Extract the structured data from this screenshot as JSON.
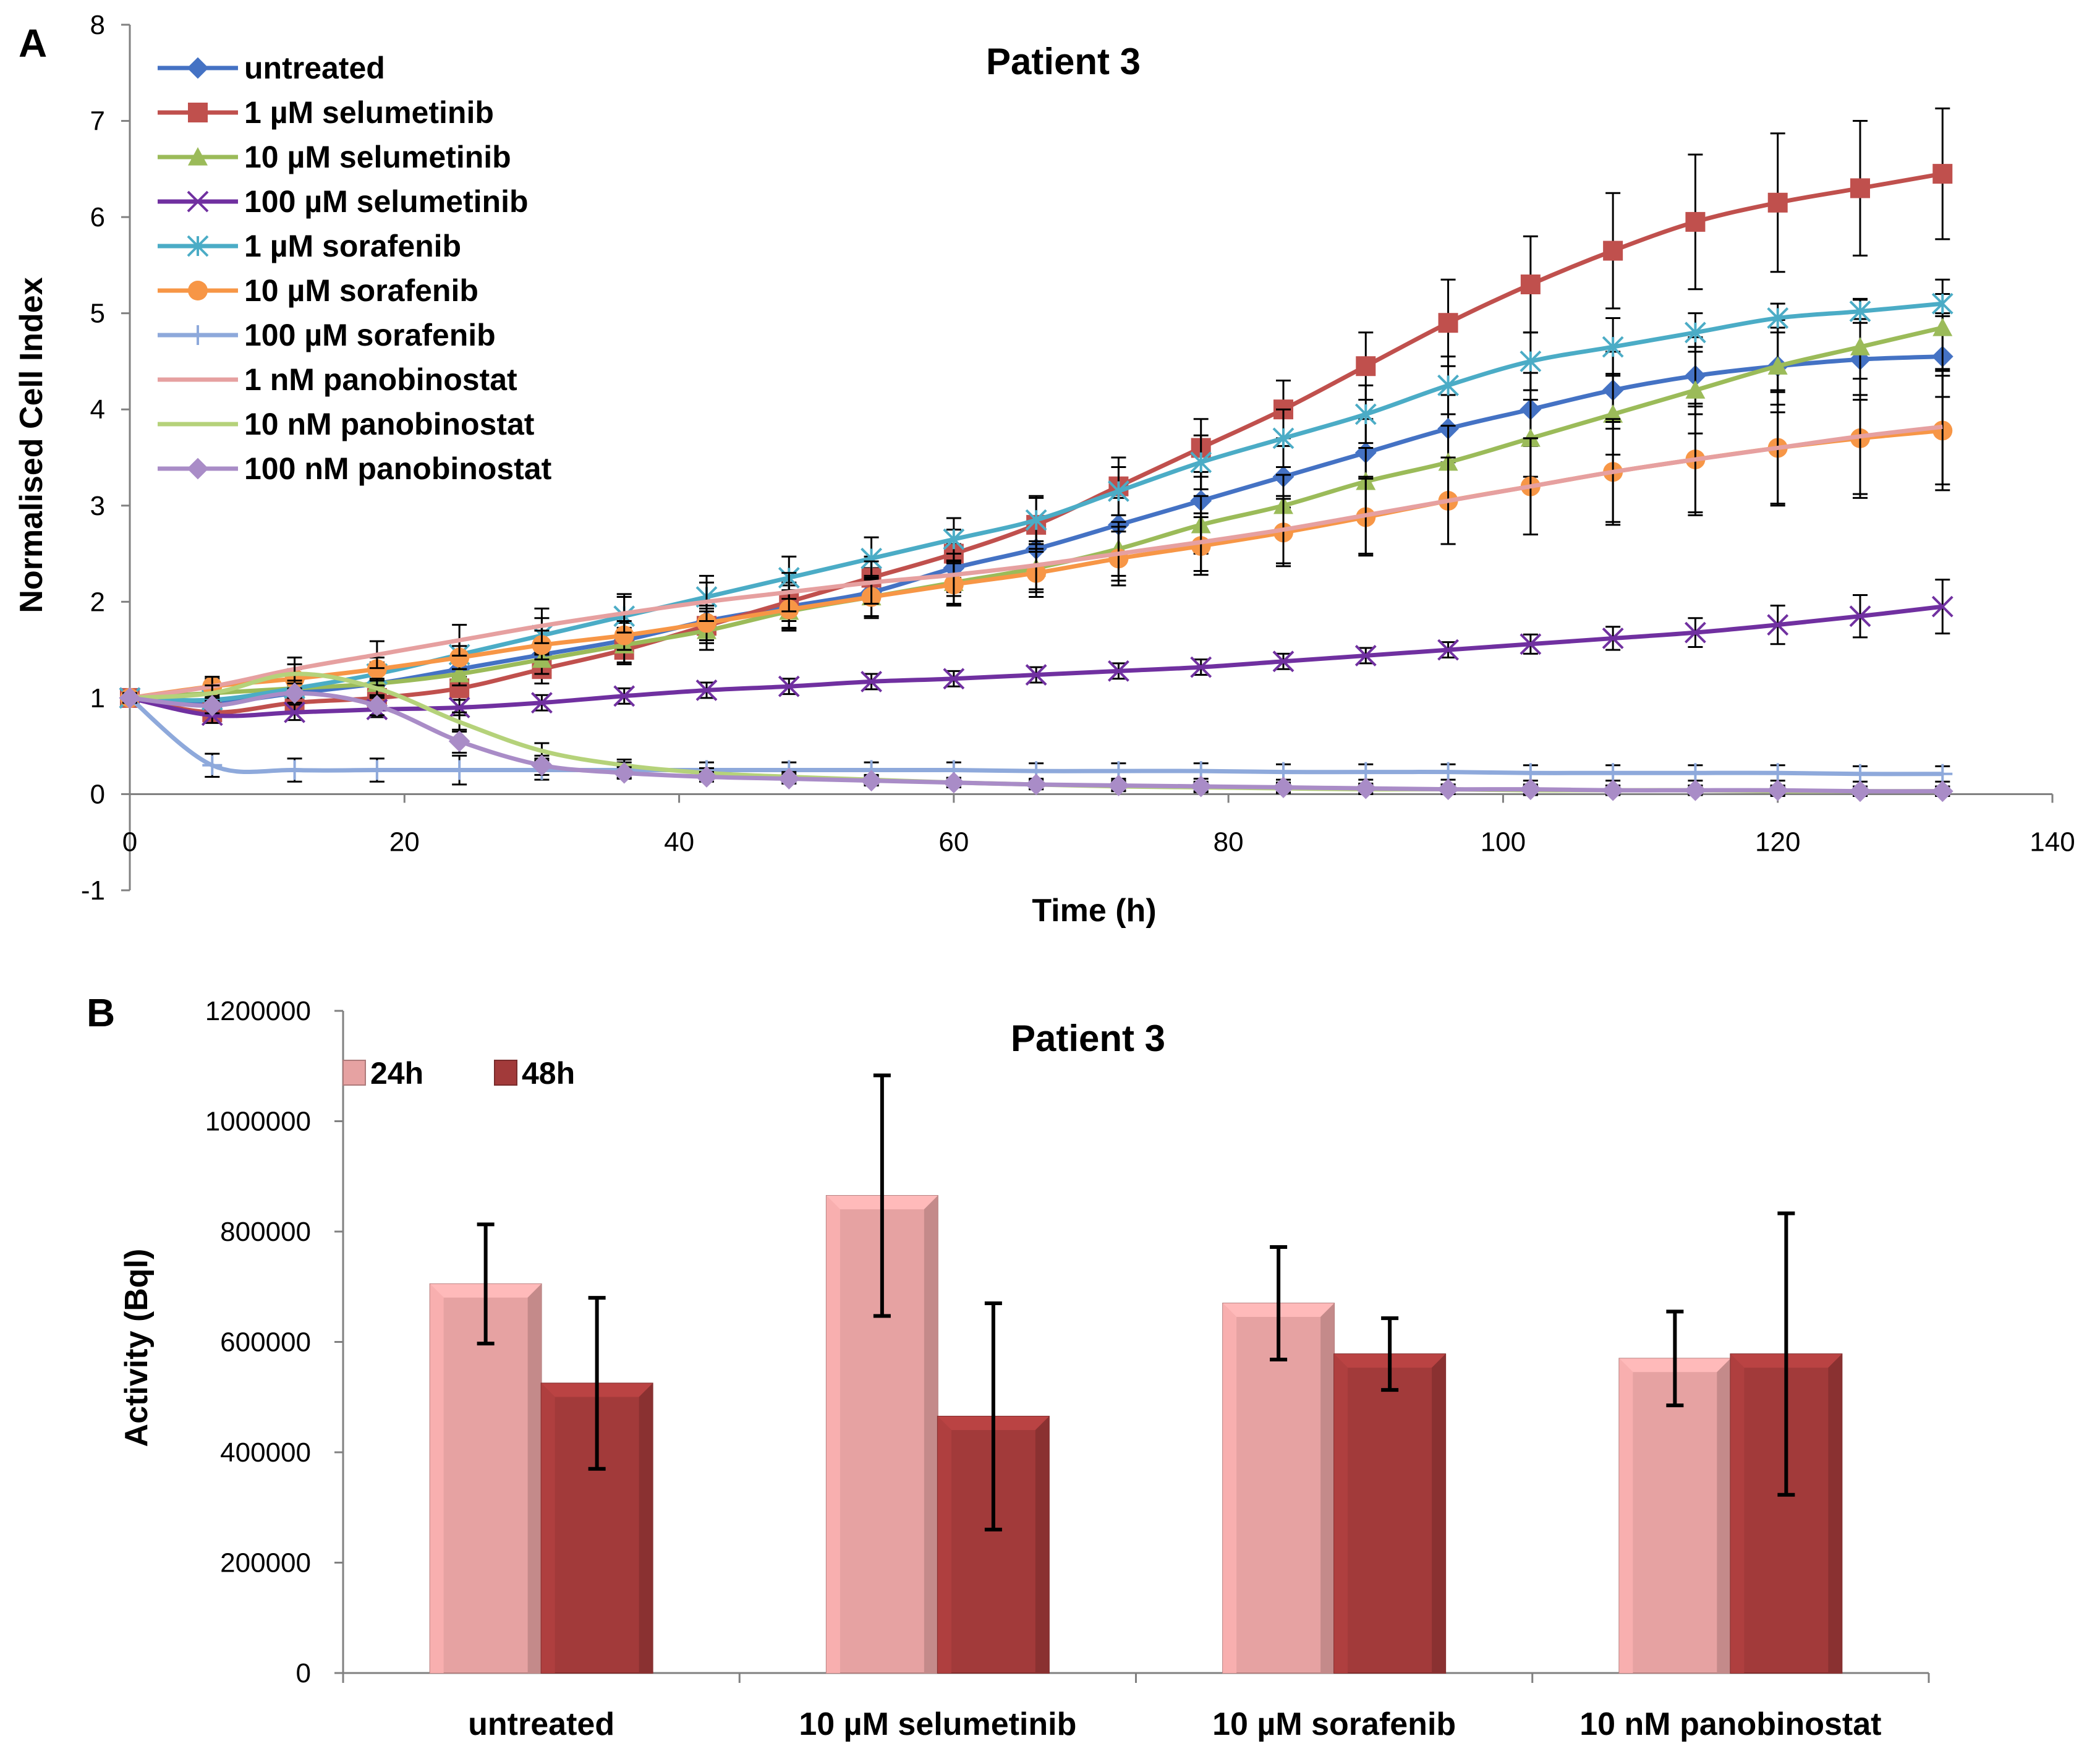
{
  "chart_data": [
    {
      "panel": "A",
      "type": "line",
      "title": "Patient 3",
      "xlabel": "Time (h)",
      "ylabel": "Normalised Cell Index",
      "xlim": [
        0,
        140
      ],
      "ylim": [
        -1,
        8
      ],
      "xticks": [
        0,
        20,
        40,
        60,
        80,
        100,
        120,
        140
      ],
      "yticks": [
        -1,
        0,
        1,
        2,
        3,
        4,
        5,
        6,
        7,
        8
      ],
      "x": [
        0,
        6,
        12,
        18,
        24,
        30,
        36,
        42,
        48,
        54,
        60,
        66,
        72,
        78,
        84,
        90,
        96,
        102,
        108,
        114,
        120,
        126,
        132
      ],
      "legend_position": "top-left",
      "series": [
        {
          "name": "untreated",
          "color": "#4472C4",
          "marker": "diamond",
          "values": [
            1.0,
            0.95,
            1.05,
            1.15,
            1.3,
            1.45,
            1.6,
            1.8,
            1.95,
            2.1,
            2.35,
            2.55,
            2.8,
            3.05,
            3.3,
            3.55,
            3.8,
            4.0,
            4.2,
            4.35,
            4.45,
            4.52,
            4.55
          ],
          "errors": [
            0.05,
            0.05,
            0.08,
            0.1,
            0.12,
            0.15,
            0.18,
            0.2,
            0.22,
            0.25,
            0.25,
            0.25,
            0.28,
            0.3,
            0.32,
            0.35,
            0.35,
            0.38,
            0.4,
            0.4,
            0.4,
            0.42,
            0.42
          ]
        },
        {
          "name": "1 µM selumetinib",
          "color": "#C0504D",
          "marker": "square",
          "values": [
            1.0,
            0.85,
            0.95,
            1.0,
            1.1,
            1.3,
            1.5,
            1.75,
            2.0,
            2.25,
            2.5,
            2.8,
            3.2,
            3.6,
            4.0,
            4.45,
            4.9,
            5.3,
            5.65,
            5.95,
            6.15,
            6.3,
            6.45
          ],
          "errors": [
            0.05,
            0.1,
            0.1,
            0.12,
            0.12,
            0.15,
            0.15,
            0.18,
            0.2,
            0.22,
            0.25,
            0.28,
            0.3,
            0.3,
            0.3,
            0.35,
            0.45,
            0.5,
            0.6,
            0.7,
            0.72,
            0.7,
            0.68
          ]
        },
        {
          "name": "10 µM selumetinib",
          "color": "#9BBB59",
          "marker": "triangle",
          "values": [
            1.0,
            1.05,
            1.1,
            1.15,
            1.25,
            1.4,
            1.55,
            1.7,
            1.9,
            2.05,
            2.2,
            2.35,
            2.55,
            2.8,
            3.0,
            3.25,
            3.45,
            3.7,
            3.95,
            4.2,
            4.45,
            4.65,
            4.85
          ],
          "errors": [
            0.05,
            0.08,
            0.1,
            0.12,
            0.12,
            0.15,
            0.18,
            0.2,
            0.2,
            0.22,
            0.22,
            0.25,
            0.28,
            0.3,
            0.32,
            0.35,
            0.38,
            0.4,
            0.42,
            0.45,
            0.48,
            0.5,
            0.5
          ]
        },
        {
          "name": "100 µM selumetinib",
          "color": "#7030A0",
          "marker": "x",
          "values": [
            1.0,
            0.82,
            0.85,
            0.88,
            0.9,
            0.95,
            1.02,
            1.08,
            1.12,
            1.17,
            1.2,
            1.24,
            1.28,
            1.32,
            1.38,
            1.44,
            1.5,
            1.56,
            1.62,
            1.68,
            1.76,
            1.85,
            1.95
          ],
          "errors": [
            0.05,
            0.08,
            0.08,
            0.08,
            0.08,
            0.08,
            0.08,
            0.08,
            0.08,
            0.08,
            0.08,
            0.08,
            0.08,
            0.08,
            0.08,
            0.08,
            0.08,
            0.1,
            0.12,
            0.15,
            0.2,
            0.22,
            0.28
          ]
        },
        {
          "name": "1 µM sorafenib",
          "color": "#4BACC6",
          "marker": "asterisk",
          "values": [
            1.0,
            0.98,
            1.1,
            1.25,
            1.45,
            1.65,
            1.85,
            2.05,
            2.25,
            2.45,
            2.65,
            2.85,
            3.15,
            3.45,
            3.7,
            3.95,
            4.25,
            4.5,
            4.65,
            4.8,
            4.95,
            5.02,
            5.1
          ],
          "errors": [
            0.05,
            0.08,
            0.1,
            0.12,
            0.15,
            0.18,
            0.2,
            0.22,
            0.22,
            0.22,
            0.22,
            0.25,
            0.25,
            0.28,
            0.3,
            0.3,
            0.3,
            0.3,
            0.3,
            0.2,
            0.15,
            0.12,
            0.1
          ]
        },
        {
          "name": "10 µM sorafenib",
          "color": "#F79646",
          "marker": "circle",
          "values": [
            1.0,
            1.12,
            1.2,
            1.3,
            1.42,
            1.55,
            1.65,
            1.78,
            1.92,
            2.05,
            2.18,
            2.3,
            2.45,
            2.58,
            2.72,
            2.88,
            3.05,
            3.2,
            3.35,
            3.48,
            3.6,
            3.7,
            3.78
          ],
          "errors": [
            0.05,
            0.08,
            0.1,
            0.12,
            0.12,
            0.15,
            0.15,
            0.18,
            0.2,
            0.2,
            0.22,
            0.25,
            0.28,
            0.3,
            0.35,
            0.4,
            0.45,
            0.5,
            0.55,
            0.58,
            0.6,
            0.62,
            0.62
          ]
        },
        {
          "name": "100 µM sorafenib",
          "color": "#8EA9DB",
          "marker": "plus",
          "values": [
            1.0,
            0.3,
            0.25,
            0.25,
            0.25,
            0.25,
            0.25,
            0.25,
            0.25,
            0.25,
            0.25,
            0.24,
            0.24,
            0.24,
            0.23,
            0.23,
            0.23,
            0.22,
            0.22,
            0.22,
            0.22,
            0.21,
            0.21
          ],
          "errors": [
            0.05,
            0.12,
            0.12,
            0.12,
            0.15,
            0.1,
            0.08,
            0.08,
            0.08,
            0.08,
            0.08,
            0.08,
            0.08,
            0.08,
            0.08,
            0.08,
            0.08,
            0.08,
            0.08,
            0.08,
            0.08,
            0.08,
            0.08
          ]
        },
        {
          "name": "1 nM panobinostat",
          "color": "#E6A0A0",
          "marker": "none",
          "values": [
            1.0,
            1.12,
            1.3,
            1.45,
            1.6,
            1.75,
            1.88,
            2.0,
            2.1,
            2.2,
            2.28,
            2.38,
            2.5,
            2.62,
            2.75,
            2.9,
            3.05,
            3.2,
            3.35,
            3.48,
            3.6,
            3.72,
            3.82
          ],
          "errors": [
            0.05,
            0.1,
            0.12,
            0.14,
            0.16,
            0.18,
            0.2,
            0.2,
            0.2,
            0.22,
            0.22,
            0.25,
            0.28,
            0.3,
            0.35,
            0.4,
            0.45,
            0.5,
            0.52,
            0.55,
            0.58,
            0.6,
            0.6
          ]
        },
        {
          "name": "10 nM panobinostat",
          "color": "#B5D27A",
          "marker": "none",
          "values": [
            1.0,
            1.05,
            1.25,
            1.1,
            0.75,
            0.45,
            0.3,
            0.22,
            0.18,
            0.15,
            0.12,
            0.1,
            0.08,
            0.07,
            0.06,
            0.05,
            0.05,
            0.04,
            0.04,
            0.04,
            0.03,
            0.03,
            0.03
          ],
          "errors": [
            0.05,
            0.08,
            0.1,
            0.1,
            0.1,
            0.08,
            0.06,
            0.05,
            0.05,
            0.05,
            0.05,
            0.05,
            0.05,
            0.05,
            0.05,
            0.05,
            0.05,
            0.05,
            0.05,
            0.05,
            0.05,
            0.05,
            0.05
          ]
        },
        {
          "name": "100 nM panobinostat",
          "color": "#A98CC7",
          "marker": "diamond",
          "values": [
            1.0,
            0.92,
            1.05,
            0.92,
            0.55,
            0.3,
            0.22,
            0.18,
            0.16,
            0.14,
            0.12,
            0.1,
            0.09,
            0.08,
            0.07,
            0.06,
            0.05,
            0.05,
            0.04,
            0.04,
            0.04,
            0.03,
            0.03
          ],
          "errors": [
            0.05,
            0.08,
            0.1,
            0.1,
            0.12,
            0.1,
            0.06,
            0.05,
            0.05,
            0.05,
            0.05,
            0.05,
            0.05,
            0.05,
            0.05,
            0.05,
            0.05,
            0.05,
            0.05,
            0.05,
            0.05,
            0.05,
            0.05
          ]
        }
      ]
    },
    {
      "panel": "B",
      "type": "bar",
      "title": "Patient 3",
      "xlabel": "",
      "ylabel": "Activity (Bql)",
      "ylim": [
        0,
        1200000
      ],
      "yticks": [
        0,
        200000,
        400000,
        600000,
        800000,
        1000000,
        1200000
      ],
      "categories": [
        "untreated",
        "10 µM selumetinib",
        "10 µM sorafenib",
        "10 nM panobinostat"
      ],
      "legend_position": "top-left",
      "series": [
        {
          "name": "24h",
          "color": "#E6A2A2",
          "values": [
            705000,
            865000,
            670000,
            570000
          ],
          "errors": [
            108000,
            218000,
            102000,
            85000
          ]
        },
        {
          "name": "48h",
          "color": "#A23A3A",
          "values": [
            525000,
            465000,
            578000,
            578000
          ],
          "errors": [
            155000,
            205000,
            65000,
            255000
          ]
        }
      ]
    }
  ]
}
